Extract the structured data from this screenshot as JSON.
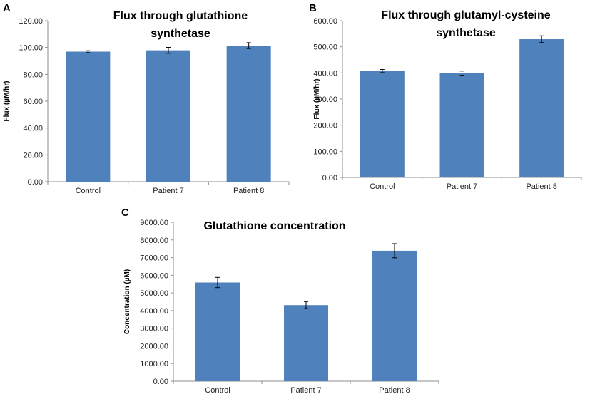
{
  "colors": {
    "bar": "#4f81bd",
    "error_bar": "#000000",
    "axis": "#8c8c8c"
  },
  "chart_data": [
    {
      "panel": "A",
      "type": "bar",
      "title_lines": [
        "Flux through glutathione",
        "synthetase"
      ],
      "xlabel": "",
      "ylabel": "Flux (µM/hr)",
      "categories": [
        "Control",
        "Patient 7",
        "Patient 8"
      ],
      "values": [
        96.9,
        97.9,
        101.4
      ],
      "errors": [
        0.7,
        2.2,
        2.2
      ],
      "ylim": [
        0,
        120
      ],
      "yticks": [
        "0.00",
        "20.00",
        "40.00",
        "60.00",
        "80.00",
        "100.00",
        "120.00"
      ]
    },
    {
      "panel": "B",
      "type": "bar",
      "title_lines": [
        "Flux through glutamyl-cysteine",
        "synthetase"
      ],
      "xlabel": "",
      "ylabel": "Flux (µM/hr)",
      "categories": [
        "Control",
        "Patient 7",
        "Patient 8"
      ],
      "values": [
        407,
        399,
        529
      ],
      "errors": [
        6,
        8,
        13
      ],
      "ylim": [
        0,
        600
      ],
      "yticks": [
        "0.00",
        "100.00",
        "200.00",
        "300.00",
        "400.00",
        "500.00",
        "600.00"
      ]
    },
    {
      "panel": "C",
      "type": "bar",
      "title_lines": [
        "Glutathione concentration"
      ],
      "xlabel": "",
      "ylabel": "Concentration (µM)",
      "categories": [
        "Control",
        "Patient 7",
        "Patient 8"
      ],
      "values": [
        5590,
        4310,
        7390
      ],
      "errors": [
        290,
        200,
        400
      ],
      "ylim": [
        0,
        9000
      ],
      "yticks": [
        "0.00",
        "1000.00",
        "2000.00",
        "3000.00",
        "4000.00",
        "5000.00",
        "6000.00",
        "7000.00",
        "8000.00",
        "9000.00"
      ]
    }
  ]
}
